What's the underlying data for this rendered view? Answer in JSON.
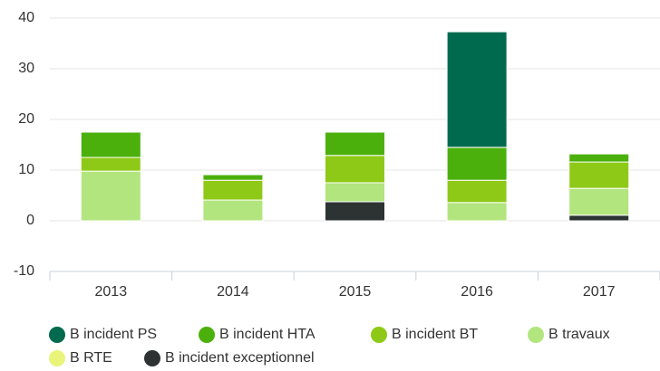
{
  "chart_data": {
    "type": "stacked_bar",
    "categories": [
      "2013",
      "2014",
      "2015",
      "2016",
      "2017"
    ],
    "series": [
      {
        "name": "B incident exceptionnel",
        "color": "#2d3232",
        "values": [
          0,
          0,
          3.75,
          0,
          1.1
        ]
      },
      {
        "name": "B RTE",
        "color": "#e8f47a",
        "values": [
          0,
          0,
          0,
          0,
          0
        ]
      },
      {
        "name": "B travaux",
        "color": "#b2e57e",
        "values": [
          9.8,
          4.1,
          3.75,
          3.6,
          5.3
        ]
      },
      {
        "name": "B incident BT",
        "color": "#8fc918",
        "values": [
          2.7,
          3.9,
          5.4,
          4.4,
          5.2
        ]
      },
      {
        "name": "B incident HTA",
        "color": "#4cb00c",
        "values": [
          5.0,
          1.1,
          4.6,
          6.5,
          1.6
        ]
      },
      {
        "name": "B incident PS",
        "color": "#006a4e",
        "values": [
          0,
          0,
          0,
          22.8,
          0
        ]
      }
    ],
    "legend_order": [
      5,
      4,
      3,
      2,
      1,
      0
    ],
    "ylim": [
      -10,
      40
    ],
    "yticks": [
      -10,
      0,
      10,
      20,
      30,
      40
    ],
    "grid": true
  }
}
